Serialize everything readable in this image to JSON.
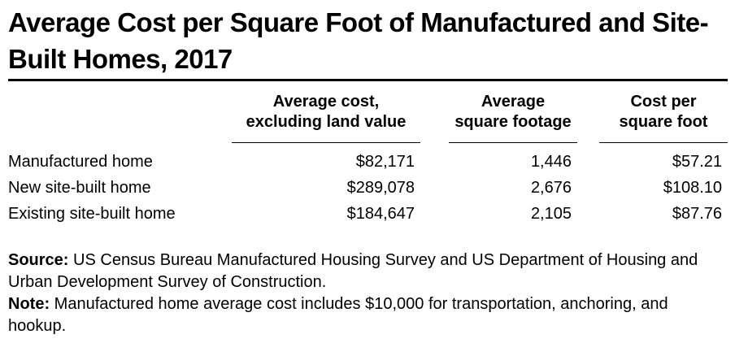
{
  "chart_data": {
    "type": "table",
    "title": "Average Cost per Square Foot of Manufactured and Site-Built Homes, 2017",
    "title_lines": [
      "Average Cost per Square Foot of Manufactured and Site-",
      "Built Homes, 2017"
    ],
    "columns": [
      {
        "label": "Average cost, excluding land value",
        "line1": "Average cost,",
        "line2": "excluding land value"
      },
      {
        "label": "Average square footage",
        "line1": "Average",
        "line2": "square footage"
      },
      {
        "label": "Cost per square foot",
        "line1": "Cost per",
        "line2": "square foot"
      }
    ],
    "rows": [
      {
        "label": "Manufactured home",
        "avg_cost": "$82,171",
        "avg_sqft": "1,446",
        "cost_per_sqft": "$57.21"
      },
      {
        "label": "New site-built home",
        "avg_cost": "$289,078",
        "avg_sqft": "2,676",
        "cost_per_sqft": "$108.10"
      },
      {
        "label": "Existing site-built home",
        "avg_cost": "$184,647",
        "avg_sqft": "2,105",
        "cost_per_sqft": "$87.76"
      }
    ],
    "values": {
      "average_cost_excluding_land_usd": [
        82171,
        289078,
        184647
      ],
      "average_square_footage": [
        1446,
        2676,
        2105
      ],
      "cost_per_square_foot_usd": [
        57.21,
        108.1,
        87.76
      ]
    },
    "source_label": "Source:",
    "source_text": "US Census Bureau Manufactured Housing Survey and US Department of Housing and Urban Development Survey of Construction.",
    "note_label": "Note:",
    "note_text": "Manufactured home average cost includes $10,000 for transportation, anchoring, and hookup."
  },
  "colors": {
    "text": "#000000",
    "background": "#ffffff",
    "rule": "#000000"
  }
}
